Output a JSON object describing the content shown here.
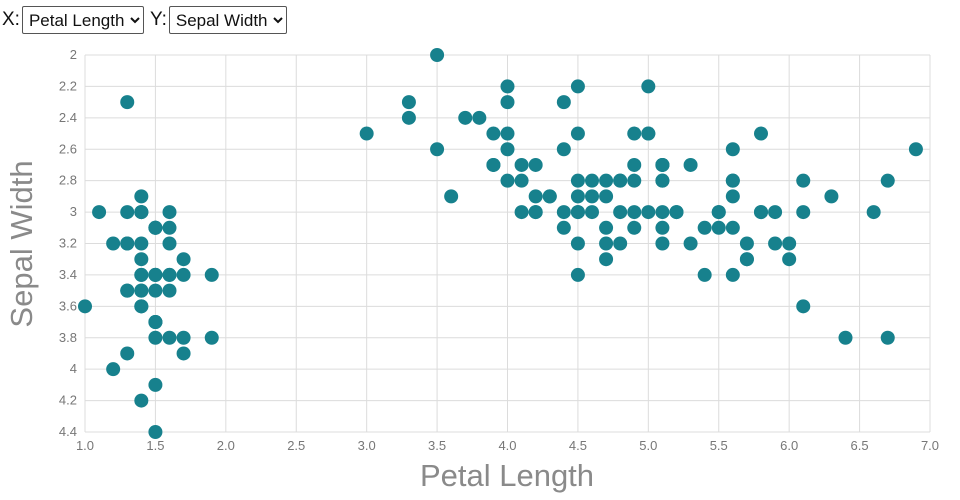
{
  "controls": {
    "x_label": "X:",
    "x_select": {
      "value": "Petal Length",
      "options": [
        "Petal Length"
      ]
    },
    "y_label": "Y:",
    "y_select": {
      "value": "Sepal Width",
      "options": [
        "Sepal Width"
      ]
    }
  },
  "chart_data": {
    "type": "scatter",
    "title": "",
    "xlabel": "Petal Length",
    "ylabel": "Sepal Width",
    "xlim": [
      1.0,
      7.0
    ],
    "ylim": [
      2.0,
      4.4
    ],
    "y_axis_inverted": true,
    "grid": true,
    "legend": false,
    "x_ticks": [
      1.0,
      1.5,
      2.0,
      2.5,
      3.0,
      3.5,
      4.0,
      4.5,
      5.0,
      5.5,
      6.0,
      6.5,
      7.0
    ],
    "y_ticks": [
      2.0,
      2.2,
      2.4,
      2.6,
      2.8,
      3.0,
      3.2,
      3.4,
      3.6,
      3.8,
      4.0,
      4.2,
      4.4
    ],
    "marker_color": "#17818D",
    "marker_radius": 7,
    "points": [
      [
        1.4,
        3.5
      ],
      [
        1.4,
        3.0
      ],
      [
        1.3,
        3.2
      ],
      [
        1.5,
        3.1
      ],
      [
        1.4,
        3.6
      ],
      [
        1.7,
        3.9
      ],
      [
        1.4,
        3.4
      ],
      [
        1.5,
        3.4
      ],
      [
        1.4,
        2.9
      ],
      [
        1.5,
        3.1
      ],
      [
        1.5,
        3.7
      ],
      [
        1.6,
        3.4
      ],
      [
        1.4,
        3.0
      ],
      [
        1.1,
        3.0
      ],
      [
        1.2,
        4.0
      ],
      [
        1.5,
        4.4
      ],
      [
        1.3,
        3.9
      ],
      [
        1.4,
        3.5
      ],
      [
        1.7,
        3.8
      ],
      [
        1.5,
        3.8
      ],
      [
        1.7,
        3.4
      ],
      [
        1.5,
        3.7
      ],
      [
        1.0,
        3.6
      ],
      [
        1.7,
        3.3
      ],
      [
        1.9,
        3.4
      ],
      [
        1.6,
        3.0
      ],
      [
        1.6,
        3.4
      ],
      [
        1.5,
        3.5
      ],
      [
        1.4,
        3.4
      ],
      [
        1.6,
        3.2
      ],
      [
        1.6,
        3.1
      ],
      [
        1.5,
        3.4
      ],
      [
        1.5,
        4.1
      ],
      [
        1.4,
        4.2
      ],
      [
        1.5,
        3.1
      ],
      [
        1.2,
        3.2
      ],
      [
        1.3,
        3.5
      ],
      [
        1.4,
        3.6
      ],
      [
        1.3,
        3.0
      ],
      [
        1.5,
        3.4
      ],
      [
        1.3,
        3.5
      ],
      [
        1.3,
        2.3
      ],
      [
        1.3,
        3.2
      ],
      [
        1.6,
        3.5
      ],
      [
        1.9,
        3.8
      ],
      [
        1.4,
        3.0
      ],
      [
        1.6,
        3.8
      ],
      [
        1.4,
        3.2
      ],
      [
        1.5,
        3.7
      ],
      [
        1.4,
        3.3
      ],
      [
        4.7,
        3.2
      ],
      [
        4.5,
        3.2
      ],
      [
        4.9,
        3.1
      ],
      [
        4.0,
        2.3
      ],
      [
        4.6,
        2.8
      ],
      [
        4.5,
        2.8
      ],
      [
        4.7,
        3.3
      ],
      [
        3.3,
        2.4
      ],
      [
        4.6,
        2.9
      ],
      [
        3.9,
        2.7
      ],
      [
        3.5,
        2.0
      ],
      [
        4.2,
        3.0
      ],
      [
        4.0,
        2.2
      ],
      [
        4.7,
        2.9
      ],
      [
        3.6,
        2.9
      ],
      [
        4.4,
        3.1
      ],
      [
        4.5,
        3.0
      ],
      [
        4.1,
        2.7
      ],
      [
        4.5,
        2.2
      ],
      [
        3.9,
        2.5
      ],
      [
        4.8,
        3.2
      ],
      [
        4.0,
        2.8
      ],
      [
        4.9,
        2.5
      ],
      [
        4.7,
        2.8
      ],
      [
        4.3,
        2.9
      ],
      [
        4.4,
        3.0
      ],
      [
        4.8,
        2.8
      ],
      [
        5.0,
        3.0
      ],
      [
        4.5,
        2.9
      ],
      [
        3.5,
        2.6
      ],
      [
        3.8,
        2.4
      ],
      [
        3.7,
        2.4
      ],
      [
        3.9,
        2.7
      ],
      [
        5.1,
        2.7
      ],
      [
        4.5,
        3.0
      ],
      [
        4.5,
        3.4
      ],
      [
        4.7,
        3.1
      ],
      [
        4.4,
        2.3
      ],
      [
        4.1,
        3.0
      ],
      [
        4.0,
        2.5
      ],
      [
        4.4,
        2.6
      ],
      [
        4.6,
        3.0
      ],
      [
        4.0,
        2.6
      ],
      [
        3.3,
        2.3
      ],
      [
        4.2,
        2.7
      ],
      [
        4.2,
        3.0
      ],
      [
        4.2,
        2.9
      ],
      [
        4.3,
        2.9
      ],
      [
        3.0,
        2.5
      ],
      [
        4.1,
        2.8
      ],
      [
        6.0,
        3.3
      ],
      [
        5.1,
        2.7
      ],
      [
        5.9,
        3.0
      ],
      [
        5.6,
        2.9
      ],
      [
        5.8,
        3.0
      ],
      [
        6.6,
        3.0
      ],
      [
        4.5,
        2.5
      ],
      [
        6.3,
        2.9
      ],
      [
        5.8,
        2.5
      ],
      [
        6.1,
        3.6
      ],
      [
        5.1,
        3.2
      ],
      [
        5.3,
        2.7
      ],
      [
        5.5,
        3.0
      ],
      [
        5.0,
        2.5
      ],
      [
        5.1,
        2.8
      ],
      [
        5.3,
        3.2
      ],
      [
        5.5,
        3.0
      ],
      [
        6.7,
        3.8
      ],
      [
        6.9,
        2.6
      ],
      [
        5.0,
        2.2
      ],
      [
        5.7,
        3.2
      ],
      [
        4.9,
        2.8
      ],
      [
        6.7,
        2.8
      ],
      [
        4.9,
        2.7
      ],
      [
        5.7,
        3.3
      ],
      [
        6.0,
        3.2
      ],
      [
        4.8,
        2.8
      ],
      [
        4.9,
        3.0
      ],
      [
        5.6,
        2.8
      ],
      [
        5.8,
        3.0
      ],
      [
        6.1,
        2.8
      ],
      [
        6.4,
        3.8
      ],
      [
        5.6,
        2.8
      ],
      [
        5.1,
        2.8
      ],
      [
        5.6,
        2.6
      ],
      [
        6.1,
        3.0
      ],
      [
        5.6,
        3.4
      ],
      [
        5.5,
        3.1
      ],
      [
        4.8,
        3.0
      ],
      [
        5.4,
        3.1
      ],
      [
        5.6,
        3.1
      ],
      [
        5.1,
        3.1
      ],
      [
        5.1,
        2.7
      ],
      [
        5.9,
        3.2
      ],
      [
        5.7,
        3.3
      ],
      [
        5.2,
        3.0
      ],
      [
        5.0,
        2.5
      ],
      [
        5.2,
        3.0
      ],
      [
        5.4,
        3.4
      ],
      [
        5.1,
        3.0
      ]
    ]
  },
  "colors": {
    "marker": "#17818D",
    "grid": "#DCDCDC",
    "tick_label": "#777777",
    "axis_title": "#8A8A8A",
    "background": "#FFFFFF"
  }
}
